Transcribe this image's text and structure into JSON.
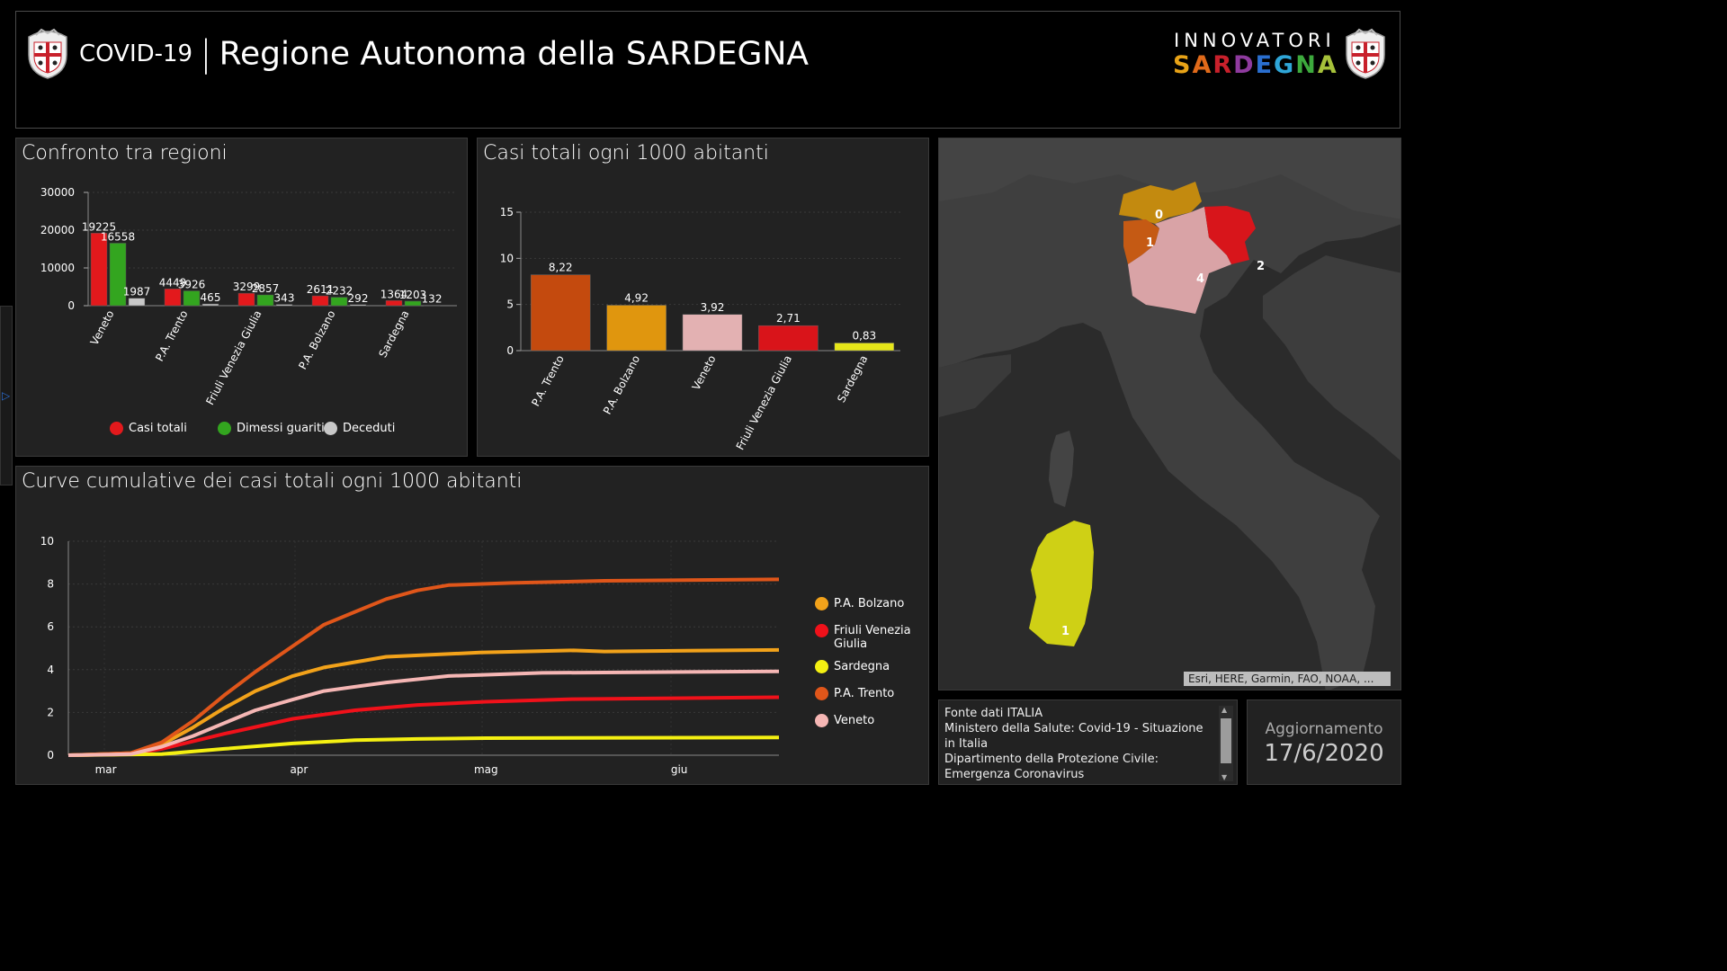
{
  "header": {
    "covid": "COVID-19",
    "separator": "|",
    "region": "Regione Autonoma della SARDEGNA",
    "brand_top": "INNOVATORI",
    "brand_bottom": "SARDEGNA",
    "brand_colors": [
      "#e8a317",
      "#e06a1a",
      "#c8202b",
      "#8e3a9e",
      "#2a6fd0",
      "#2fa6d8",
      "#3daa3d",
      "#a6c13a"
    ]
  },
  "panels": {
    "confronto_title": "Confronto tra regioni",
    "casi1000_title": "Casi totali ogni 1000 abitanti",
    "curve_title": "Curve cumulative dei casi totali ogni 1000 abitanti"
  },
  "chart_data": [
    {
      "type": "bar",
      "title": "Confronto tra regioni",
      "categories": [
        "Veneto",
        "P.A. Trento",
        "Friuli Venezia Giulia",
        "P.A. Bolzano",
        "Sardegna"
      ],
      "series": [
        {
          "name": "Casi totali",
          "color": "#e3191c",
          "values": [
            19225,
            4449,
            3299,
            2611,
            1364
          ]
        },
        {
          "name": "Dimessi guariti",
          "color": "#33a51f",
          "values": [
            16558,
            3926,
            2857,
            2232,
            1203
          ]
        },
        {
          "name": "Deceduti",
          "color": "#c8c8c8",
          "values": [
            1987,
            465,
            343,
            292,
            132
          ]
        }
      ],
      "yticks": [
        "0",
        "10000",
        "20000",
        "30000"
      ],
      "ylim": [
        0,
        30000
      ],
      "legend": "bottom"
    },
    {
      "type": "bar",
      "title": "Casi totali ogni 1000 abitanti",
      "categories": [
        "P.A. Trento",
        "P.A. Bolzano",
        "Veneto",
        "Friuli Venezia Giulia",
        "Sardegna"
      ],
      "values": [
        8.22,
        4.92,
        3.92,
        2.71,
        0.83
      ],
      "labels": [
        "8,22",
        "4,92",
        "3,92",
        "2,71",
        "0,83"
      ],
      "colors": [
        "#c44a0e",
        "#e0960e",
        "#e3b1b2",
        "#d9141a",
        "#e6e619"
      ],
      "yticks": [
        "0",
        "5",
        "10",
        "15"
      ],
      "ylim": [
        0,
        15
      ]
    },
    {
      "type": "line",
      "title": "Curve cumulative dei casi totali ogni 1000 abitanti",
      "xticks": [
        "mar",
        "apr",
        "mag",
        "giu"
      ],
      "yticks": [
        "0",
        "2",
        "4",
        "6",
        "8",
        "10"
      ],
      "ylim": [
        0,
        10
      ],
      "xlim": [
        "2020-02-24",
        "2020-06-17"
      ],
      "legend": "right",
      "series": [
        {
          "name": "P.A. Bolzano",
          "color": "#f2a21a",
          "points": [
            [
              "2020-02-24",
              0
            ],
            [
              "2020-03-05",
              0.1
            ],
            [
              "2020-03-10",
              0.5
            ],
            [
              "2020-03-15",
              1.3
            ],
            [
              "2020-03-20",
              2.2
            ],
            [
              "2020-03-25",
              3.0
            ],
            [
              "2020-03-31",
              3.7
            ],
            [
              "2020-04-05",
              4.1
            ],
            [
              "2020-04-15",
              4.6
            ],
            [
              "2020-04-30",
              4.8
            ],
            [
              "2020-05-15",
              4.9
            ],
            [
              "2020-05-20",
              4.85
            ],
            [
              "2020-06-17",
              4.92
            ]
          ]
        },
        {
          "name": "Friuli Venezia Giulia",
          "color": "#f0111a",
          "points": [
            [
              "2020-02-24",
              0
            ],
            [
              "2020-03-05",
              0.05
            ],
            [
              "2020-03-10",
              0.3
            ],
            [
              "2020-03-20",
              1.0
            ],
            [
              "2020-03-31",
              1.7
            ],
            [
              "2020-04-10",
              2.1
            ],
            [
              "2020-04-20",
              2.35
            ],
            [
              "2020-05-01",
              2.5
            ],
            [
              "2020-05-15",
              2.62
            ],
            [
              "2020-06-17",
              2.71
            ]
          ]
        },
        {
          "name": "Sardegna",
          "color": "#f4f012",
          "points": [
            [
              "2020-02-24",
              0
            ],
            [
              "2020-03-10",
              0.05
            ],
            [
              "2020-03-20",
              0.3
            ],
            [
              "2020-03-31",
              0.55
            ],
            [
              "2020-04-10",
              0.7
            ],
            [
              "2020-04-20",
              0.76
            ],
            [
              "2020-05-01",
              0.8
            ],
            [
              "2020-06-17",
              0.83
            ]
          ]
        },
        {
          "name": "P.A. Trento",
          "color": "#e0561a",
          "points": [
            [
              "2020-02-24",
              0
            ],
            [
              "2020-03-05",
              0.1
            ],
            [
              "2020-03-10",
              0.6
            ],
            [
              "2020-03-15",
              1.6
            ],
            [
              "2020-03-20",
              2.8
            ],
            [
              "2020-03-25",
              3.9
            ],
            [
              "2020-03-31",
              5.1
            ],
            [
              "2020-04-05",
              6.1
            ],
            [
              "2020-04-10",
              6.7
            ],
            [
              "2020-04-15",
              7.3
            ],
            [
              "2020-04-20",
              7.7
            ],
            [
              "2020-04-25",
              7.95
            ],
            [
              "2020-05-05",
              8.05
            ],
            [
              "2020-05-20",
              8.15
            ],
            [
              "2020-06-17",
              8.22
            ]
          ]
        },
        {
          "name": "Veneto",
          "color": "#f5b6b4",
          "points": [
            [
              "2020-02-24",
              0
            ],
            [
              "2020-03-05",
              0.05
            ],
            [
              "2020-03-10",
              0.4
            ],
            [
              "2020-03-15",
              0.9
            ],
            [
              "2020-03-20",
              1.5
            ],
            [
              "2020-03-25",
              2.1
            ],
            [
              "2020-03-31",
              2.6
            ],
            [
              "2020-04-05",
              3.0
            ],
            [
              "2020-04-15",
              3.4
            ],
            [
              "2020-04-25",
              3.7
            ],
            [
              "2020-05-10",
              3.85
            ],
            [
              "2020-06-17",
              3.92
            ]
          ]
        }
      ]
    }
  ],
  "map": {
    "labels": [
      "0",
      "1",
      "2",
      "4",
      "1"
    ],
    "region_colors": {
      "bolzano": "#c38a0f",
      "trento": "#c55a14",
      "veneto": "#d9a3a6",
      "friuli": "#d8151b",
      "sardegna": "#cfd015"
    },
    "attribution": "Esri, HERE, Garmin, FAO, NOAA, ..."
  },
  "fonte": {
    "line1": "Fonte dati ITALIA",
    "line2": "Ministero della Salute: Covid-19 - Situazione in Italia",
    "line3": "Dipartimento della Protezione Civile: Emergenza Coronavirus"
  },
  "aggiornamento": {
    "label": "Aggiornamento",
    "date": "17/6/2020"
  }
}
